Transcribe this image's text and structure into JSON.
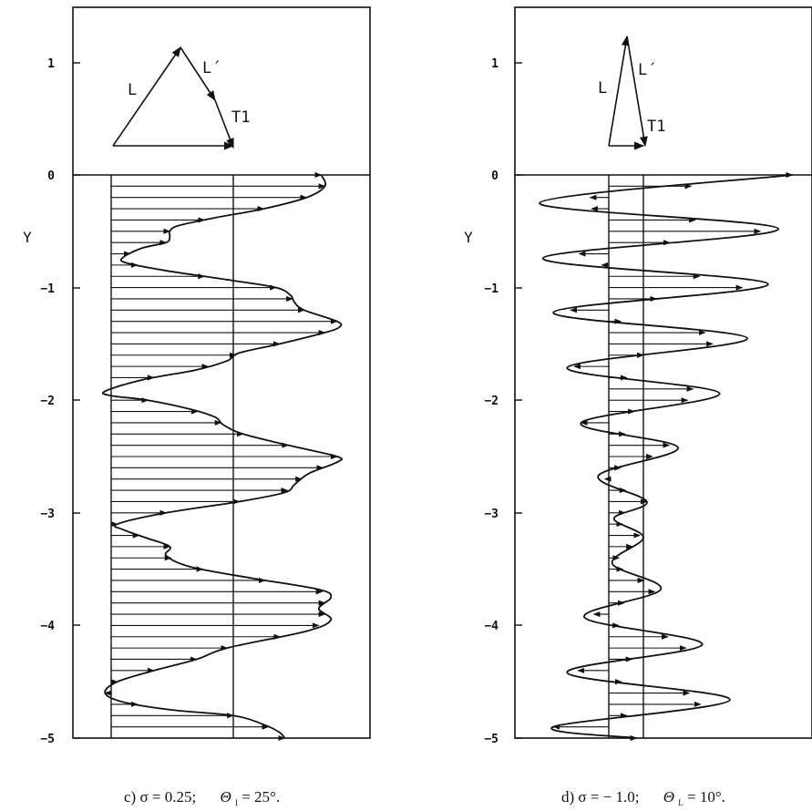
{
  "figure": {
    "panels": [
      {
        "caption_prefix": "c) σ = 0.25;",
        "caption_theta": "Θ",
        "caption_theta_sub": "I",
        "caption_theta_value": " = 25°.",
        "ylabel": "Y",
        "y_ticks": [
          "1",
          "0",
          "−1",
          "−2",
          "−3",
          "−4",
          "−5"
        ],
        "vector_labels": {
          "L": "L",
          "Lprime": "L´",
          "T1": "T1"
        }
      },
      {
        "caption_prefix": "d) σ = − 1.0;",
        "caption_theta": "Θ",
        "caption_theta_sub": "L",
        "caption_theta_value": " = 10°.",
        "ylabel": "Y",
        "y_ticks": [
          "1",
          "0",
          "−1",
          "−2",
          "−3",
          "−4",
          "−5"
        ],
        "vector_labels": {
          "L": "L",
          "Lprime": "L´",
          "T1": "T1"
        }
      }
    ]
  },
  "chart_data": [
    {
      "type": "line",
      "orientation": "profile u(Y)",
      "ylim": [
        -5,
        1.4
      ],
      "ylabel": "Y",
      "y_ticks": [
        1,
        0,
        -1,
        -2,
        -3,
        -4,
        -5
      ],
      "baseline_x": 0,
      "reference_x": 1,
      "x_max_approx": 1.75,
      "vector_diagram": {
        "L": "L",
        "Lprime": "L´",
        "T1": "T1",
        "vertices": [
          [
            0,
            0.25
          ],
          [
            0.6,
            1.15
          ],
          [
            0.85,
            0.75
          ],
          [
            1.0,
            0.28
          ]
        ]
      },
      "series": [
        {
          "points": [
            {
              "y": 0.0,
              "x": 1.72
            },
            {
              "y": -0.1,
              "x": 1.75
            },
            {
              "y": -0.2,
              "x": 1.6
            },
            {
              "y": -0.3,
              "x": 1.25
            },
            {
              "y": -0.38,
              "x": 0.85
            },
            {
              "y": -0.45,
              "x": 0.55
            },
            {
              "y": -0.5,
              "x": 0.48
            },
            {
              "y": -0.55,
              "x": 0.48
            },
            {
              "y": -0.6,
              "x": 0.45
            },
            {
              "y": -0.65,
              "x": 0.25
            },
            {
              "y": -0.73,
              "x": 0.1
            },
            {
              "y": -0.78,
              "x": 0.12
            },
            {
              "y": -0.85,
              "x": 0.45
            },
            {
              "y": -0.93,
              "x": 0.95
            },
            {
              "y": -1.0,
              "x": 1.35
            },
            {
              "y": -1.07,
              "x": 1.47
            },
            {
              "y": -1.13,
              "x": 1.5
            },
            {
              "y": -1.2,
              "x": 1.58
            },
            {
              "y": -1.3,
              "x": 1.85
            },
            {
              "y": -1.35,
              "x": 1.87
            },
            {
              "y": -1.4,
              "x": 1.75
            },
            {
              "y": -1.5,
              "x": 1.38
            },
            {
              "y": -1.58,
              "x": 1.05
            },
            {
              "y": -1.65,
              "x": 0.95
            },
            {
              "y": -1.73,
              "x": 0.7
            },
            {
              "y": -1.82,
              "x": 0.25
            },
            {
              "y": -1.92,
              "x": -0.05
            },
            {
              "y": -1.96,
              "x": 0.0
            },
            {
              "y": -2.0,
              "x": 0.3
            },
            {
              "y": -2.08,
              "x": 0.65
            },
            {
              "y": -2.15,
              "x": 0.85
            },
            {
              "y": -2.22,
              "x": 0.92
            },
            {
              "y": -2.3,
              "x": 1.08
            },
            {
              "y": -2.4,
              "x": 1.45
            },
            {
              "y": -2.5,
              "x": 1.85
            },
            {
              "y": -2.55,
              "x": 1.85
            },
            {
              "y": -2.65,
              "x": 1.62
            },
            {
              "y": -2.75,
              "x": 1.5
            },
            {
              "y": -2.82,
              "x": 1.42
            },
            {
              "y": -2.9,
              "x": 1.05
            },
            {
              "y": -3.0,
              "x": 0.45
            },
            {
              "y": -3.1,
              "x": 0.05
            },
            {
              "y": -3.15,
              "x": 0.1
            },
            {
              "y": -3.22,
              "x": 0.28
            },
            {
              "y": -3.3,
              "x": 0.48
            },
            {
              "y": -3.38,
              "x": 0.45
            },
            {
              "y": -3.48,
              "x": 0.65
            },
            {
              "y": -3.58,
              "x": 1.15
            },
            {
              "y": -3.68,
              "x": 1.7
            },
            {
              "y": -3.75,
              "x": 1.8
            },
            {
              "y": -3.85,
              "x": 1.7
            },
            {
              "y": -3.95,
              "x": 1.8
            },
            {
              "y": -4.05,
              "x": 1.6
            },
            {
              "y": -4.2,
              "x": 0.95
            },
            {
              "y": -4.3,
              "x": 0.7
            },
            {
              "y": -4.4,
              "x": 0.35
            },
            {
              "y": -4.5,
              "x": 0.05
            },
            {
              "y": -4.6,
              "x": -0.05
            },
            {
              "y": -4.68,
              "x": 0.1
            },
            {
              "y": -4.75,
              "x": 0.5
            },
            {
              "y": -4.8,
              "x": 1.0
            },
            {
              "y": -4.88,
              "x": 1.25
            },
            {
              "y": -4.95,
              "x": 1.38
            },
            {
              "y": -5.0,
              "x": 1.42
            }
          ]
        }
      ]
    },
    {
      "type": "line",
      "orientation": "profile u(Y)",
      "ylim": [
        -5,
        1.4
      ],
      "ylabel": "Y",
      "y_ticks": [
        1,
        0,
        -1,
        -2,
        -3,
        -4,
        -5
      ],
      "baseline_x": 0,
      "reference_x": 1,
      "vector_diagram": {
        "L": "L",
        "Lprime": "L´",
        "T1": "T1",
        "vertices": [
          [
            0,
            0.25
          ],
          [
            0.55,
            1.22
          ],
          [
            1.0,
            0.3
          ]
        ]
      },
      "series": [
        {
          "points": [
            {
              "y": 0.0,
              "x": 5.3
            },
            {
              "y": -0.25,
              "x": -2.0
            },
            {
              "y": -0.48,
              "x": 4.9
            },
            {
              "y": -0.74,
              "x": -1.9
            },
            {
              "y": -0.97,
              "x": 4.6
            },
            {
              "y": -1.22,
              "x": -1.6
            },
            {
              "y": -1.45,
              "x": 4.0
            },
            {
              "y": -1.71,
              "x": -1.2
            },
            {
              "y": -1.94,
              "x": 3.2
            },
            {
              "y": -2.2,
              "x": -0.8
            },
            {
              "y": -2.42,
              "x": 2.0
            },
            {
              "y": -2.67,
              "x": -0.3
            },
            {
              "y": -2.9,
              "x": 1.1
            },
            {
              "y": -3.05,
              "x": 0.15
            },
            {
              "y": -3.22,
              "x": 1.0
            },
            {
              "y": -3.45,
              "x": 0.1
            },
            {
              "y": -3.68,
              "x": 1.5
            },
            {
              "y": -3.93,
              "x": -0.7
            },
            {
              "y": -4.17,
              "x": 2.7
            },
            {
              "y": -4.42,
              "x": -1.2
            },
            {
              "y": -4.66,
              "x": 3.5
            },
            {
              "y": -4.9,
              "x": -1.6
            },
            {
              "y": -5.0,
              "x": 0.8
            }
          ]
        }
      ]
    }
  ]
}
